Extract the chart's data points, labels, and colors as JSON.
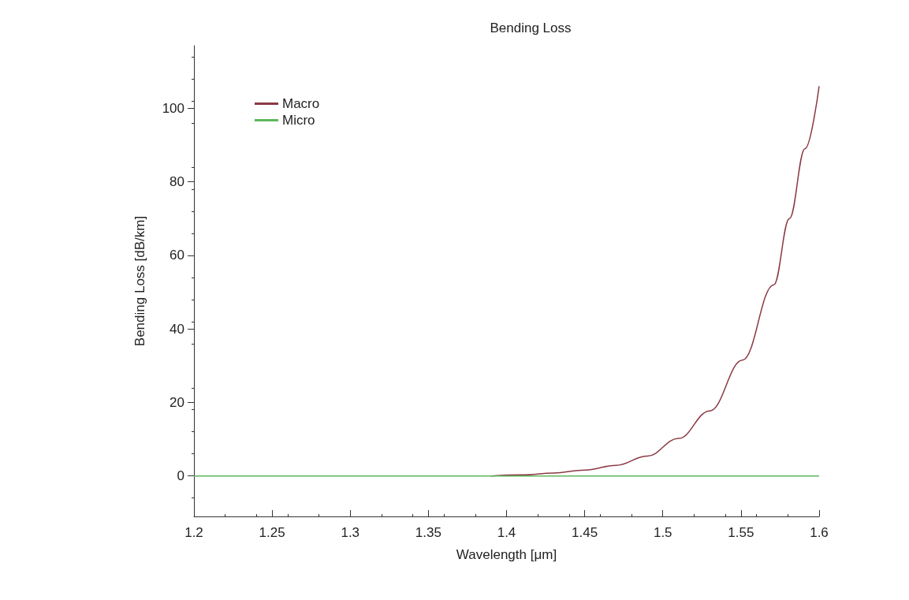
{
  "chart_data": {
    "type": "line",
    "title": "Bending Loss",
    "xlabel": "Wavelength [μm]",
    "ylabel": "Bending Loss [dB/km]",
    "xlim": [
      1.2,
      1.6
    ],
    "xticks": [
      1.2,
      1.25,
      1.3,
      1.35,
      1.4,
      1.45,
      1.5,
      1.55,
      1.6
    ],
    "ylim": [
      -11,
      117
    ],
    "yticks": [
      0,
      20,
      40,
      60,
      80,
      100
    ],
    "grid": false,
    "legend": "top left",
    "marker": "none",
    "line_style": "solid",
    "series": [
      {
        "name": "Macro",
        "color": "#8b3a45",
        "x": [
          1.39,
          1.41,
          1.43,
          1.45,
          1.47,
          1.49,
          1.51,
          1.53,
          1.551,
          1.571,
          1.581,
          1.591,
          1.6
        ],
        "values": [
          0,
          0.3,
          0.8,
          1.6,
          2.9,
          5.4,
          10.2,
          17.7,
          31.5,
          52,
          70,
          89,
          106
        ]
      },
      {
        "name": "Micro",
        "color": "#5cb85c",
        "x": [
          1.2,
          1.6
        ],
        "values": [
          0,
          0
        ]
      }
    ]
  }
}
